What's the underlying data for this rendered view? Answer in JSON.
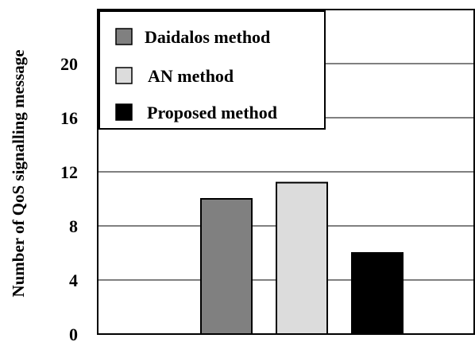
{
  "chart_data": {
    "type": "bar",
    "title": "",
    "xlabel": "",
    "ylabel": "Number of QoS signalling message",
    "ylim": [
      0,
      24
    ],
    "yticks": [
      "0",
      "4",
      "8",
      "12",
      "16",
      "20"
    ],
    "grid": true,
    "legend_position": "top-left",
    "series": [
      {
        "name": "Daidalos  method",
        "values": [
          10
        ],
        "color": "#808080"
      },
      {
        "name": "AN method",
        "values": [
          11.2
        ],
        "color": "#dcdcdc"
      },
      {
        "name": "Proposed method",
        "values": [
          6
        ],
        "color": "#000000"
      }
    ]
  }
}
